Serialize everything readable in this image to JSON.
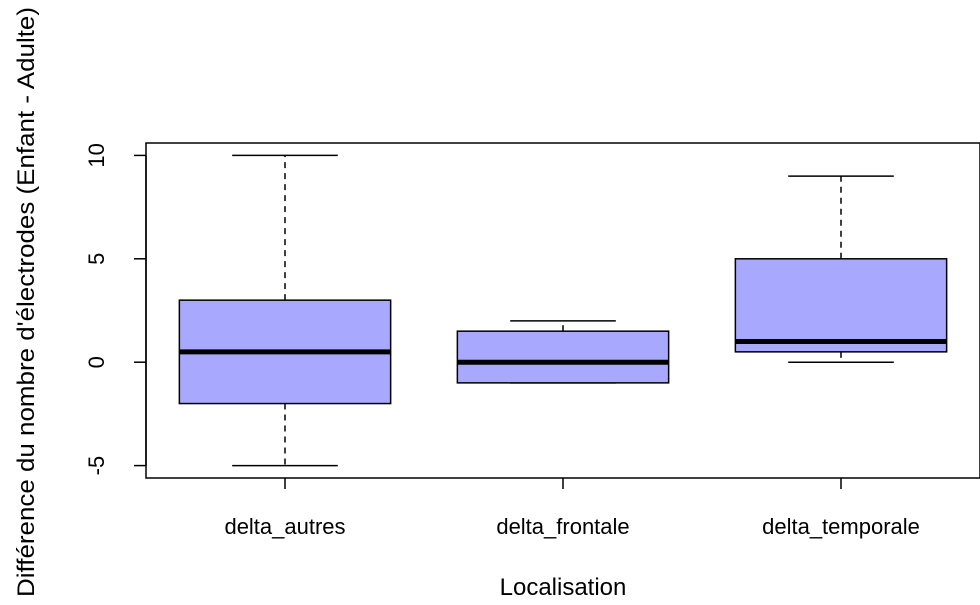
{
  "chart_data": {
    "type": "boxplot",
    "title": "",
    "xlabel": "Localisation",
    "ylabel": "Différence du nombre d'électrodes (Enfant - Adulte)",
    "categories": [
      "delta_autres",
      "delta_frontale",
      "delta_temporale"
    ],
    "boxes": [
      {
        "category": "delta_autres",
        "whisker_low": -5,
        "q1": -2,
        "median": 0.5,
        "q3": 3,
        "whisker_high": 10
      },
      {
        "category": "delta_frontale",
        "whisker_low": -1,
        "q1": -1,
        "median": 0,
        "q3": 1.5,
        "whisker_high": 2
      },
      {
        "category": "delta_temporale",
        "whisker_low": 0,
        "q1": 0.5,
        "median": 1,
        "q3": 5,
        "whisker_high": 9
      }
    ],
    "yticks": [
      -5,
      0,
      5,
      10
    ],
    "ylim": [
      -5.6,
      10.6
    ],
    "box_color": "#a8a8ff",
    "line_color": "#000000",
    "grid": false,
    "legend": "none"
  }
}
